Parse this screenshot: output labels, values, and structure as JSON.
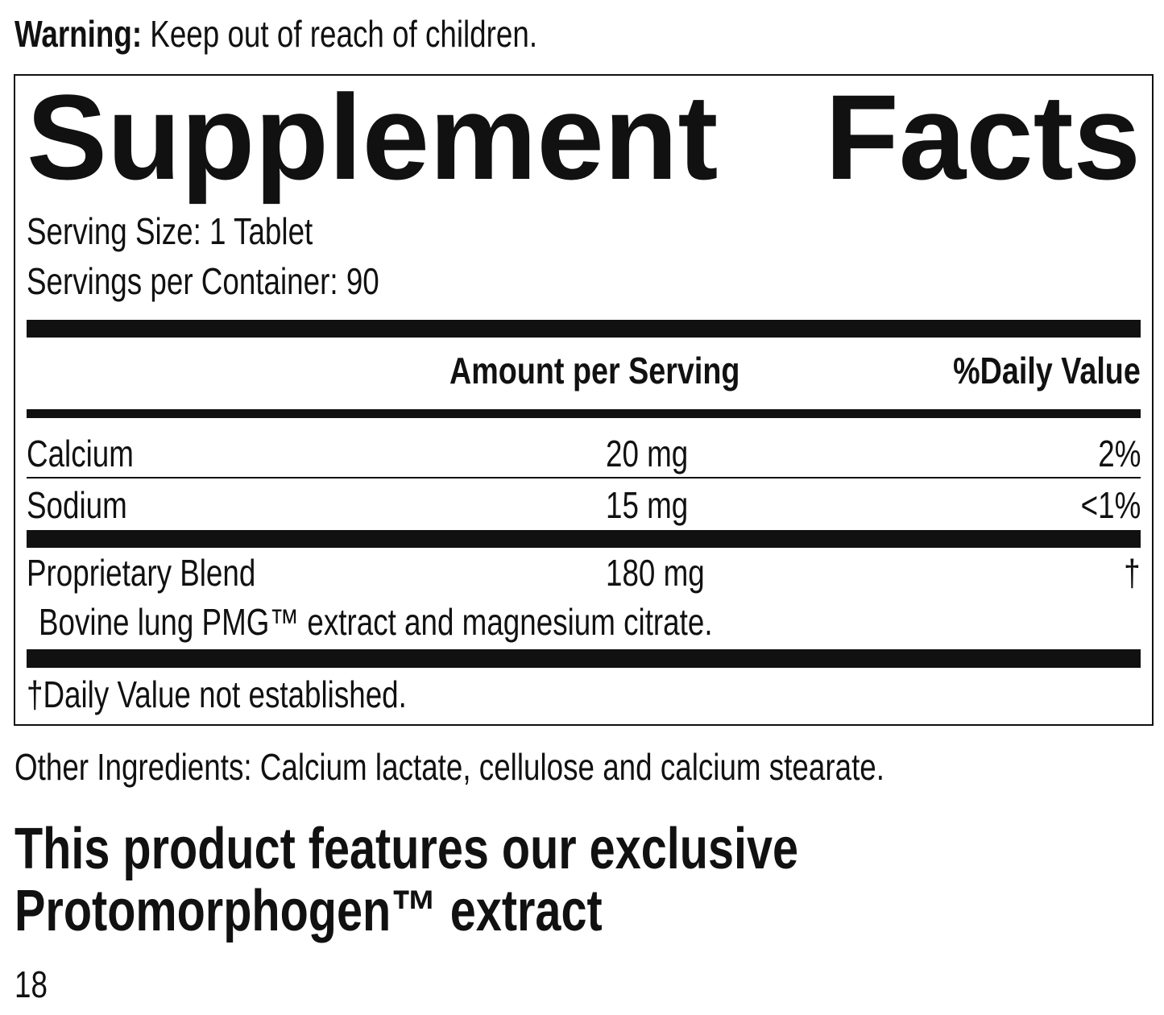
{
  "warning": {
    "label": "Warning:",
    "text": "Keep out of reach of children."
  },
  "facts": {
    "title": "Supplement Facts",
    "serving_size": "Serving Size: 1 Tablet",
    "servings_per_container": "Servings per Container: 90",
    "headers": [
      "Amount per Serving",
      "%Daily Value"
    ],
    "rows": [
      [
        "Calcium",
        "20 mg",
        "2%"
      ],
      [
        "Sodium",
        "15 mg",
        "<1%"
      ],
      [
        "Proprietary Blend",
        "180 mg",
        "†"
      ]
    ],
    "blend_ingredients": "Bovine lung PMG™ extract and magnesium citrate.",
    "footnote": "†Daily Value not established."
  },
  "other_ingredients": "Other Ingredients: Calcium lactate, cellulose and calcium stearate.",
  "feature": [
    "This product features our exclusive",
    "Protomorphogen™ extract"
  ],
  "page_number": "18"
}
